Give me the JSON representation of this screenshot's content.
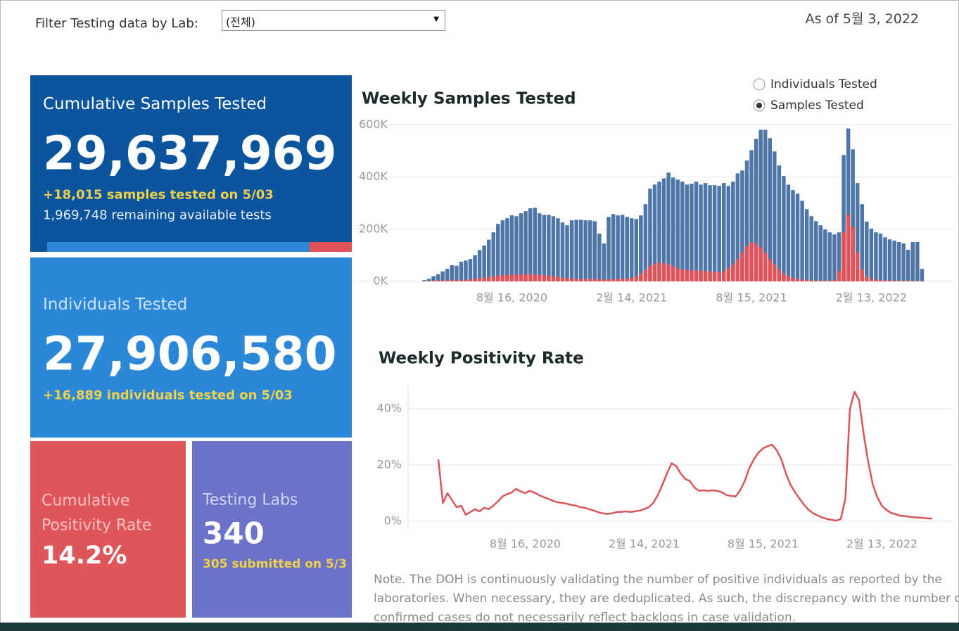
{
  "filter": {
    "label": "Filter Testing data by Lab:",
    "selected": "(전체)"
  },
  "as_of": "As of 5월 3, 2022",
  "cards": [
    {
      "title": [
        "Cumulative Samples Tested"
      ],
      "value": "29,637,969",
      "lines": [
        "+18,015 samples tested on 5/03",
        "1,969,748 remaining available tests"
      ]
    },
    {
      "title": [
        "Individuals Tested"
      ],
      "value": "27,906,580",
      "lines": [
        "+16,889  individuals  tested on 5/03"
      ]
    },
    {
      "title": [
        "Cumulative",
        "Positivity Rate"
      ],
      "value": "14.2%",
      "lines": []
    },
    {
      "title": [
        "Testing Labs"
      ],
      "value": "340",
      "lines": [
        "305 submitted on 5/3"
      ]
    }
  ],
  "toggle": {
    "options": [
      "Individuals Tested",
      "Samples Tested"
    ],
    "selected": 1
  },
  "chart_data": [
    {
      "type": "bar",
      "title": "Weekly Samples Tested",
      "grid": true,
      "categories": [
        null,
        null,
        null,
        null,
        null,
        null,
        null,
        null,
        null,
        null,
        null,
        null,
        null,
        null,
        null,
        null,
        null,
        null,
        null,
        "8월 16, 2020",
        null,
        null,
        null,
        null,
        null,
        null,
        null,
        null,
        null,
        null,
        null,
        null,
        null,
        null,
        null,
        null,
        null,
        null,
        null,
        null,
        null,
        null,
        null,
        null,
        null,
        "2월 14, 2021",
        null,
        null,
        null,
        null,
        null,
        null,
        null,
        null,
        null,
        null,
        null,
        null,
        null,
        null,
        null,
        null,
        null,
        null,
        null,
        null,
        null,
        null,
        null,
        null,
        null,
        "8월 15, 2021",
        null,
        null,
        null,
        null,
        null,
        null,
        null,
        null,
        null,
        null,
        null,
        null,
        null,
        null,
        null,
        null,
        null,
        null,
        null,
        null,
        null,
        null,
        null,
        null,
        null,
        "2월 13, 2022",
        null,
        null,
        null,
        null,
        null,
        null,
        null,
        null,
        null,
        null,
        null
      ],
      "ylim": [
        0,
        620000
      ],
      "yticks": [
        {
          "value": 0,
          "label": "0K"
        },
        {
          "value": 200000,
          "label": "200K"
        },
        {
          "value": 400000,
          "label": "400K"
        },
        {
          "value": 600000,
          "label": "600K"
        }
      ],
      "series": [
        {
          "color": "#4e76a8",
          "values": [
            5000,
            10000,
            20000,
            27000,
            38000,
            48000,
            62000,
            60000,
            75000,
            80000,
            86000,
            100000,
            120000,
            137000,
            160000,
            188000,
            220000,
            234000,
            242000,
            253000,
            250000,
            261000,
            269000,
            280000,
            282000,
            261000,
            255000,
            255000,
            250000,
            242000,
            226000,
            215000,
            234000,
            236000,
            236000,
            234000,
            234000,
            231000,
            183000,
            145000,
            247000,
            258000,
            253000,
            255000,
            247000,
            242000,
            239000,
            253000,
            296000,
            355000,
            371000,
            382000,
            395000,
            417000,
            398000,
            390000,
            382000,
            371000,
            374000,
            382000,
            371000,
            377000,
            369000,
            369000,
            366000,
            377000,
            366000,
            382000,
            414000,
            425000,
            463000,
            503000,
            546000,
            581000,
            581000,
            549000,
            498000,
            444000,
            404000,
            371000,
            350000,
            336000,
            309000,
            277000,
            250000,
            231000,
            215000,
            199000,
            188000,
            180000,
            188000,
            484000,
            586000,
            506000,
            377000,
            296000,
            229000,
            202000,
            188000,
            183000,
            169000,
            161000,
            156000,
            151000,
            145000,
            121000,
            151000,
            151000,
            48000
          ]
        },
        {
          "color": "#e05459",
          "values": [
            1000,
            2000,
            3000,
            4000,
            4000,
            5000,
            5000,
            5000,
            6000,
            7000,
            8000,
            10000,
            12000,
            14000,
            17000,
            20000,
            22000,
            24000,
            25000,
            25000,
            26000,
            27000,
            27000,
            27000,
            26000,
            25000,
            24000,
            22000,
            20000,
            18000,
            15000,
            12000,
            11000,
            10000,
            10000,
            10000,
            9000,
            9000,
            8000,
            7000,
            8000,
            8000,
            9000,
            10000,
            11000,
            14000,
            20000,
            30000,
            45000,
            60000,
            68000,
            72000,
            70000,
            65000,
            58000,
            50000,
            45000,
            44000,
            42000,
            42000,
            41000,
            40000,
            38000,
            36000,
            36000,
            40000,
            50000,
            65000,
            85000,
            110000,
            135000,
            150000,
            145000,
            130000,
            110000,
            85000,
            65000,
            45000,
            30000,
            20000,
            14000,
            10000,
            7000,
            5000,
            4000,
            3000,
            3000,
            3000,
            3000,
            5000,
            40000,
            188000,
            255000,
            210000,
            110000,
            45000,
            20000,
            10000,
            7000,
            5000,
            4000,
            4000,
            3000,
            3000,
            3000,
            2000,
            2000,
            2000,
            1000
          ]
        }
      ]
    },
    {
      "type": "line",
      "title": "Weekly Positivity Rate",
      "grid": true,
      "categories": [
        null,
        null,
        null,
        null,
        null,
        null,
        null,
        null,
        null,
        null,
        null,
        null,
        null,
        null,
        null,
        null,
        null,
        null,
        null,
        "8월 16, 2020",
        null,
        null,
        null,
        null,
        null,
        null,
        null,
        null,
        null,
        null,
        null,
        null,
        null,
        null,
        null,
        null,
        null,
        null,
        null,
        null,
        null,
        null,
        null,
        null,
        null,
        "2월 14, 2021",
        null,
        null,
        null,
        null,
        null,
        null,
        null,
        null,
        null,
        null,
        null,
        null,
        null,
        null,
        null,
        null,
        null,
        null,
        null,
        null,
        null,
        null,
        null,
        null,
        null,
        "8월 15, 2021",
        null,
        null,
        null,
        null,
        null,
        null,
        null,
        null,
        null,
        null,
        null,
        null,
        null,
        null,
        null,
        null,
        null,
        null,
        null,
        null,
        null,
        null,
        null,
        null,
        null,
        "2월 13, 2022",
        null,
        null,
        null,
        null,
        null,
        null,
        null,
        null,
        null,
        null,
        null
      ],
      "ylim": [
        -1,
        49
      ],
      "yticks": [
        {
          "value": 0,
          "label": "0%"
        },
        {
          "value": 20,
          "label": "20%"
        },
        {
          "value": 40,
          "label": "40%"
        }
      ],
      "color": "#d9555a",
      "values": [
        22,
        6.5,
        10,
        7.5,
        5,
        5.5,
        2.3,
        3.3,
        4.3,
        3.5,
        4.8,
        4.3,
        5.5,
        7,
        8.8,
        9.6,
        10.2,
        11.5,
        10.6,
        10,
        10.8,
        10.2,
        9.3,
        8.6,
        8,
        7.3,
        6.8,
        6.5,
        6.3,
        5.8,
        5.6,
        5,
        4.8,
        4.3,
        3.8,
        3.2,
        2.8,
        2.6,
        2.8,
        3.3,
        3.3,
        3.5,
        3.3,
        3.5,
        3.8,
        4.3,
        5,
        6.5,
        9.3,
        13,
        17,
        20.6,
        19.6,
        17,
        15,
        14.3,
        12,
        10.8,
        11,
        10.8,
        11,
        10.8,
        10.3,
        9.3,
        9,
        8.8,
        11,
        14.3,
        18.9,
        22,
        24.4,
        25.9,
        26.7,
        27.2,
        25.2,
        22,
        17,
        13,
        10.3,
        8,
        5.8,
        4,
        2.8,
        2,
        1.3,
        0.8,
        0.5,
        0.2,
        0.8,
        8,
        40,
        46,
        43,
        31,
        21,
        13,
        8.5,
        5.5,
        4,
        3,
        2.5,
        2,
        1.8,
        1.6,
        1.4,
        1.3,
        1.2,
        1,
        1
      ]
    }
  ],
  "note": [
    "Note. The DOH is continuously validating the number of positive individuals as reported by the",
    "laboratories. When necessary, they are deduplicated. As such, the discrepancy with the number of",
    "confirmed cases do not necessarily reflect backlogs in case validation."
  ]
}
